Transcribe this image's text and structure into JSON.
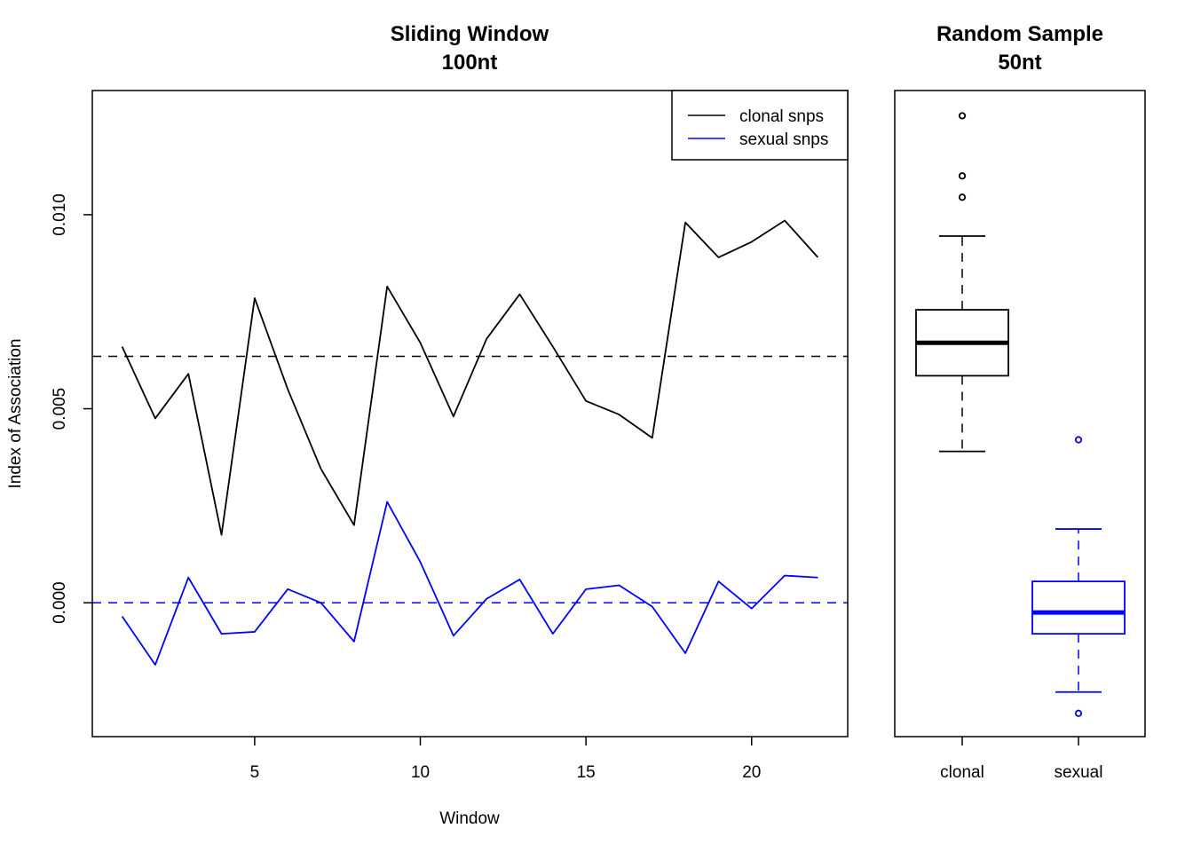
{
  "chart_data": [
    {
      "type": "line",
      "title": "Sliding Window",
      "subtitle": "100nt",
      "xlabel": "Window",
      "ylabel": "Index of Association",
      "xlim": [
        0.1,
        22.9
      ],
      "ylim": [
        -0.00345,
        0.0132
      ],
      "x_ticks": [
        5,
        10,
        15,
        20
      ],
      "y_ticks": [
        0.0,
        0.005,
        0.01
      ],
      "y_tick_labels": [
        "0.000",
        "0.005",
        "0.010"
      ],
      "x": [
        1,
        2,
        3,
        4,
        5,
        6,
        7,
        8,
        9,
        10,
        11,
        12,
        13,
        14,
        15,
        16,
        17,
        18,
        19,
        20,
        21,
        22
      ],
      "series": [
        {
          "name": "clonal snps",
          "color": "#000000",
          "values": [
            0.0066,
            0.00475,
            0.0059,
            0.00175,
            0.00785,
            0.0055,
            0.00345,
            0.002,
            0.00815,
            0.0067,
            0.0048,
            0.0068,
            0.00795,
            0.0066,
            0.0052,
            0.00485,
            0.00425,
            0.0098,
            0.0089,
            0.0093,
            0.00985,
            0.0089
          ],
          "reference_line": 0.00635
        },
        {
          "name": "sexual snps",
          "color": "#0000ff",
          "values": [
            -0.00035,
            -0.0016,
            0.00065,
            -0.0008,
            -0.00075,
            0.00035,
            0.0,
            -0.001,
            0.0026,
            0.00105,
            -0.00085,
            0.0001,
            0.0006,
            -0.0008,
            0.00035,
            0.00045,
            -0.0001,
            -0.0013,
            0.00055,
            -0.00015,
            0.0007,
            0.00065
          ],
          "reference_line": 0.0
        }
      ],
      "legend": "top-right",
      "grid": false
    },
    {
      "type": "box",
      "title": "Random Sample",
      "subtitle": "50nt",
      "categories": [
        "clonal",
        "sexual"
      ],
      "ylim": [
        -0.00345,
        0.0132
      ],
      "boxes": [
        {
          "name": "clonal",
          "color": "#000000",
          "whisker_low": 0.0039,
          "q1": 0.00585,
          "median": 0.0067,
          "q3": 0.00755,
          "whisker_high": 0.00945,
          "outliers": [
            0.01045,
            0.011,
            0.01255
          ]
        },
        {
          "name": "sexual",
          "color": "#0000ff",
          "whisker_low": -0.0023,
          "q1": -0.0008,
          "median": -0.00025,
          "q3": 0.00055,
          "whisker_high": 0.0019,
          "outliers": [
            0.0042,
            -0.00285
          ]
        }
      ]
    }
  ]
}
